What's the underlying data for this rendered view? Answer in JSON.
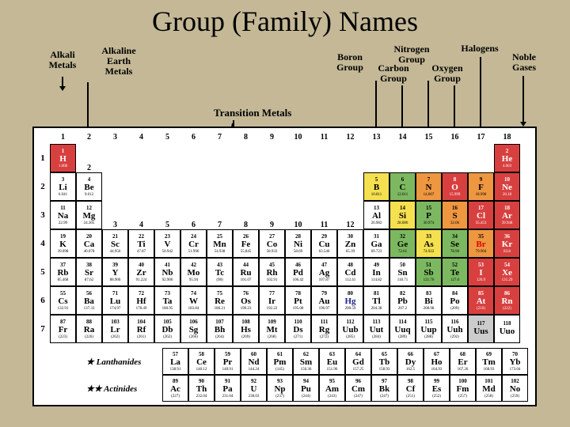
{
  "title": "Group (Family) Names",
  "groupLabels": {
    "alkali": "Alkali\nMetals",
    "alkalineEarth": "Alkaline\nEarth\nMetals",
    "transition": "Transition Metals",
    "boron": "Boron\nGroup",
    "carbon": "Carbon\nGroup",
    "nitrogen": "Nitrogen\nGroup",
    "oxygen": "Oxygen\nGroup",
    "halogens": "Halogens",
    "noble": "Noble\nGases"
  },
  "fblockLabels": {
    "lanthanides": "★ Lanthanides",
    "actinides": "★★ Actinides"
  },
  "colors": {
    "background": "#c4b896",
    "alkali": "#d84040",
    "alkalineEarth": "#ee9640",
    "transition": "#f5e050",
    "postTransition": "#7cb860",
    "metalloid": "#5a8ac8",
    "nonmetal": "#e89abf",
    "halogen": "#d4b890",
    "noble": "#ffffff"
  },
  "groups": [
    "1",
    "2",
    "3",
    "4",
    "5",
    "6",
    "7",
    "8",
    "9",
    "10",
    "11",
    "12",
    "13",
    "14",
    "15",
    "16",
    "17",
    "18"
  ],
  "periods": [
    "1",
    "2",
    "3",
    "4",
    "5",
    "6",
    "7"
  ],
  "elements": {
    "1": {
      "n": 1,
      "s": "H",
      "m": "1.008",
      "c": "c-red",
      "col": 1,
      "row": 1
    },
    "2": {
      "n": 2,
      "s": "He",
      "m": "4.003",
      "c": "c-red",
      "col": 18,
      "row": 1
    },
    "3": {
      "n": 3,
      "s": "Li",
      "m": "6.941",
      "c": "c-white",
      "col": 1,
      "row": 2
    },
    "4": {
      "n": 4,
      "s": "Be",
      "m": "9.012",
      "c": "c-white",
      "col": 2,
      "row": 2
    },
    "5": {
      "n": 5,
      "s": "B",
      "m": "10.811",
      "c": "c-yellow",
      "col": 13,
      "row": 2
    },
    "6": {
      "n": 6,
      "s": "C",
      "m": "12.011",
      "c": "c-green",
      "col": 14,
      "row": 2
    },
    "7": {
      "n": 7,
      "s": "N",
      "m": "14.007",
      "c": "c-orange",
      "col": 15,
      "row": 2
    },
    "8": {
      "n": 8,
      "s": "O",
      "m": "15.999",
      "c": "c-red",
      "col": 16,
      "row": 2
    },
    "9": {
      "n": 9,
      "s": "F",
      "m": "18.998",
      "c": "c-orange",
      "col": 17,
      "row": 2
    },
    "10": {
      "n": 10,
      "s": "Ne",
      "m": "20.18",
      "c": "c-red",
      "col": 18,
      "row": 2
    },
    "11": {
      "n": 11,
      "s": "Na",
      "m": "22.99",
      "c": "c-white",
      "col": 1,
      "row": 3
    },
    "12": {
      "n": 12,
      "s": "Mg",
      "m": "24.305",
      "c": "c-white",
      "col": 2,
      "row": 3
    },
    "13": {
      "n": 13,
      "s": "Al",
      "m": "26.982",
      "c": "c-white",
      "col": 13,
      "row": 3
    },
    "14": {
      "n": 14,
      "s": "Si",
      "m": "28.086",
      "c": "c-yellow",
      "col": 14,
      "row": 3
    },
    "15": {
      "n": 15,
      "s": "P",
      "m": "30.974",
      "c": "c-green",
      "col": 15,
      "row": 3
    },
    "16": {
      "n": 16,
      "s": "S",
      "m": "32.06",
      "c": "c-orange",
      "col": 16,
      "row": 3
    },
    "17": {
      "n": 17,
      "s": "Cl",
      "m": "35.453",
      "c": "c-red",
      "col": 17,
      "row": 3
    },
    "18": {
      "n": 18,
      "s": "Ar",
      "m": "39.948",
      "c": "c-red",
      "col": 18,
      "row": 3
    },
    "19": {
      "n": 19,
      "s": "K",
      "m": "39.098",
      "c": "c-white",
      "col": 1,
      "row": 4
    },
    "20": {
      "n": 20,
      "s": "Ca",
      "m": "40.078",
      "c": "c-white",
      "col": 2,
      "row": 4
    },
    "21": {
      "n": 21,
      "s": "Sc",
      "m": "44.956",
      "c": "c-white",
      "col": 3,
      "row": 4
    },
    "22": {
      "n": 22,
      "s": "Ti",
      "m": "47.87",
      "c": "c-white",
      "col": 4,
      "row": 4
    },
    "23": {
      "n": 23,
      "s": "V",
      "m": "50.942",
      "c": "c-white",
      "col": 5,
      "row": 4
    },
    "24": {
      "n": 24,
      "s": "Cr",
      "m": "51.996",
      "c": "c-white",
      "col": 6,
      "row": 4
    },
    "25": {
      "n": 25,
      "s": "Mn",
      "m": "54.938",
      "c": "c-white",
      "col": 7,
      "row": 4
    },
    "26": {
      "n": 26,
      "s": "Fe",
      "m": "55.845",
      "c": "c-white",
      "col": 8,
      "row": 4
    },
    "27": {
      "n": 27,
      "s": "Co",
      "m": "58.933",
      "c": "c-white",
      "col": 9,
      "row": 4
    },
    "28": {
      "n": 28,
      "s": "Ni",
      "m": "58.69",
      "c": "c-white",
      "col": 10,
      "row": 4
    },
    "29": {
      "n": 29,
      "s": "Cu",
      "m": "63.546",
      "c": "c-white",
      "col": 11,
      "row": 4
    },
    "30": {
      "n": 30,
      "s": "Zn",
      "m": "65.39",
      "c": "c-white",
      "col": 12,
      "row": 4
    },
    "31": {
      "n": 31,
      "s": "Ga",
      "m": "69.723",
      "c": "c-white",
      "col": 13,
      "row": 4
    },
    "32": {
      "n": 32,
      "s": "Ge",
      "m": "72.61",
      "c": "c-green",
      "col": 14,
      "row": 4
    },
    "33": {
      "n": 33,
      "s": "As",
      "m": "74.922",
      "c": "c-yellow",
      "col": 15,
      "row": 4
    },
    "34": {
      "n": 34,
      "s": "Se",
      "m": "78.96",
      "c": "c-green",
      "col": 16,
      "row": 4
    },
    "35": {
      "n": 35,
      "s": "Br",
      "m": "79.904",
      "c": "c-orange sym-red",
      "col": 17,
      "row": 4
    },
    "36": {
      "n": 36,
      "s": "Kr",
      "m": "83.8",
      "c": "c-red",
      "col": 18,
      "row": 4
    },
    "37": {
      "n": 37,
      "s": "Rb",
      "m": "85.468",
      "c": "c-white",
      "col": 1,
      "row": 5
    },
    "38": {
      "n": 38,
      "s": "Sr",
      "m": "87.62",
      "c": "c-white",
      "col": 2,
      "row": 5
    },
    "39": {
      "n": 39,
      "s": "Y",
      "m": "88.906",
      "c": "c-white",
      "col": 3,
      "row": 5
    },
    "40": {
      "n": 40,
      "s": "Zr",
      "m": "91.224",
      "c": "c-white",
      "col": 4,
      "row": 5
    },
    "41": {
      "n": 41,
      "s": "Nb",
      "m": "92.906",
      "c": "c-white",
      "col": 5,
      "row": 5
    },
    "42": {
      "n": 42,
      "s": "Mo",
      "m": "95.94",
      "c": "c-white",
      "col": 6,
      "row": 5
    },
    "43": {
      "n": 43,
      "s": "Tc",
      "m": "(98)",
      "c": "c-white",
      "col": 7,
      "row": 5
    },
    "44": {
      "n": 44,
      "s": "Ru",
      "m": "101.07",
      "c": "c-white",
      "col": 8,
      "row": 5
    },
    "45": {
      "n": 45,
      "s": "Rh",
      "m": "102.91",
      "c": "c-white",
      "col": 9,
      "row": 5
    },
    "46": {
      "n": 46,
      "s": "Pd",
      "m": "106.42",
      "c": "c-white",
      "col": 10,
      "row": 5
    },
    "47": {
      "n": 47,
      "s": "Ag",
      "m": "107.87",
      "c": "c-white",
      "col": 11,
      "row": 5
    },
    "48": {
      "n": 48,
      "s": "Cd",
      "m": "112.41",
      "c": "c-white",
      "col": 12,
      "row": 5
    },
    "49": {
      "n": 49,
      "s": "In",
      "m": "114.82",
      "c": "c-white",
      "col": 13,
      "row": 5
    },
    "50": {
      "n": 50,
      "s": "Sn",
      "m": "118.71",
      "c": "c-white",
      "col": 14,
      "row": 5
    },
    "51": {
      "n": 51,
      "s": "Sb",
      "m": "121.76",
      "c": "c-green",
      "col": 15,
      "row": 5
    },
    "52": {
      "n": 52,
      "s": "Te",
      "m": "127.6",
      "c": "c-green",
      "col": 16,
      "row": 5
    },
    "53": {
      "n": 53,
      "s": "I",
      "m": "126.9",
      "c": "c-red",
      "col": 17,
      "row": 5
    },
    "54": {
      "n": 54,
      "s": "Xe",
      "m": "131.29",
      "c": "c-red",
      "col": 18,
      "row": 5
    },
    "55": {
      "n": 55,
      "s": "Cs",
      "m": "132.91",
      "c": "c-white",
      "col": 1,
      "row": 6
    },
    "56": {
      "n": 56,
      "s": "Ba",
      "m": "137.33",
      "c": "c-white",
      "col": 2,
      "row": 6
    },
    "71": {
      "n": 71,
      "s": "Lu",
      "m": "174.97",
      "c": "c-white",
      "col": 3,
      "row": 6
    },
    "72": {
      "n": 72,
      "s": "Hf",
      "m": "178.49",
      "c": "c-white",
      "col": 4,
      "row": 6
    },
    "73": {
      "n": 73,
      "s": "Ta",
      "m": "180.95",
      "c": "c-white",
      "col": 5,
      "row": 6
    },
    "74": {
      "n": 74,
      "s": "W",
      "m": "183.84",
      "c": "c-white",
      "col": 6,
      "row": 6
    },
    "75": {
      "n": 75,
      "s": "Re",
      "m": "186.21",
      "c": "c-white",
      "col": 7,
      "row": 6
    },
    "76": {
      "n": 76,
      "s": "Os",
      "m": "190.23",
      "c": "c-white",
      "col": 8,
      "row": 6
    },
    "77": {
      "n": 77,
      "s": "Ir",
      "m": "192.22",
      "c": "c-white",
      "col": 9,
      "row": 6
    },
    "78": {
      "n": 78,
      "s": "Pt",
      "m": "195.08",
      "c": "c-white",
      "col": 10,
      "row": 6
    },
    "79": {
      "n": 79,
      "s": "Au",
      "m": "196.97",
      "c": "c-white",
      "col": 11,
      "row": 6
    },
    "80": {
      "n": 80,
      "s": "Hg",
      "m": "200.59",
      "c": "c-white sym-blue",
      "col": 12,
      "row": 6
    },
    "81": {
      "n": 81,
      "s": "Tl",
      "m": "204.38",
      "c": "c-white",
      "col": 13,
      "row": 6
    },
    "82": {
      "n": 82,
      "s": "Pb",
      "m": "207.2",
      "c": "c-white",
      "col": 14,
      "row": 6
    },
    "83": {
      "n": 83,
      "s": "Bi",
      "m": "208.98",
      "c": "c-white",
      "col": 15,
      "row": 6
    },
    "84": {
      "n": 84,
      "s": "Po",
      "m": "(209)",
      "c": "c-white",
      "col": 16,
      "row": 6
    },
    "85": {
      "n": 85,
      "s": "At",
      "m": "(210)",
      "c": "c-red",
      "col": 17,
      "row": 6
    },
    "86": {
      "n": 86,
      "s": "Rn",
      "m": "(222)",
      "c": "c-red",
      "col": 18,
      "row": 6
    },
    "87": {
      "n": 87,
      "s": "Fr",
      "m": "(223)",
      "c": "c-white",
      "col": 1,
      "row": 7
    },
    "88": {
      "n": 88,
      "s": "Ra",
      "m": "(226)",
      "c": "c-white",
      "col": 2,
      "row": 7
    },
    "103": {
      "n": 103,
      "s": "Lr",
      "m": "(262)",
      "c": "c-white",
      "col": 3,
      "row": 7
    },
    "104": {
      "n": 104,
      "s": "Rf",
      "m": "(261)",
      "c": "c-white",
      "col": 4,
      "row": 7
    },
    "105": {
      "n": 105,
      "s": "Db",
      "m": "(262)",
      "c": "c-white",
      "col": 5,
      "row": 7
    },
    "106": {
      "n": 106,
      "s": "Sg",
      "m": "(266)",
      "c": "c-white",
      "col": 6,
      "row": 7
    },
    "107": {
      "n": 107,
      "s": "Bh",
      "m": "(264)",
      "c": "c-white",
      "col": 7,
      "row": 7
    },
    "108": {
      "n": 108,
      "s": "Hs",
      "m": "(269)",
      "c": "c-white",
      "col": 8,
      "row": 7
    },
    "109": {
      "n": 109,
      "s": "Mt",
      "m": "(268)",
      "c": "c-white",
      "col": 9,
      "row": 7
    },
    "110": {
      "n": 110,
      "s": "Ds",
      "m": "(271)",
      "c": "c-white",
      "col": 10,
      "row": 7
    },
    "111": {
      "n": 111,
      "s": "Rg",
      "m": "(272)",
      "c": "c-white",
      "col": 11,
      "row": 7
    },
    "112": {
      "n": 112,
      "s": "Uub",
      "m": "(285)",
      "c": "c-white",
      "col": 12,
      "row": 7
    },
    "113": {
      "n": 113,
      "s": "Uut",
      "m": "(284)",
      "c": "c-white",
      "col": 13,
      "row": 7
    },
    "114": {
      "n": 114,
      "s": "Uuq",
      "m": "(289)",
      "c": "c-white",
      "col": 14,
      "row": 7
    },
    "115": {
      "n": 115,
      "s": "Uup",
      "m": "(288)",
      "c": "c-white",
      "col": 15,
      "row": 7
    },
    "116": {
      "n": 116,
      "s": "Uuh",
      "m": "(292)",
      "c": "c-white",
      "col": 16,
      "row": 7
    },
    "117": {
      "n": 117,
      "s": "Uus",
      "m": "",
      "c": "c-gray",
      "col": 17,
      "row": 7
    },
    "118": {
      "n": 118,
      "s": "Uuo",
      "m": "",
      "c": "c-white",
      "col": 18,
      "row": 7
    }
  },
  "lanthanides": [
    {
      "n": 57,
      "s": "La",
      "m": "138.91"
    },
    {
      "n": 58,
      "s": "Ce",
      "m": "140.12"
    },
    {
      "n": 59,
      "s": "Pr",
      "m": "140.91"
    },
    {
      "n": 60,
      "s": "Nd",
      "m": "144.24"
    },
    {
      "n": 61,
      "s": "Pm",
      "m": "(145)"
    },
    {
      "n": 62,
      "s": "Sm",
      "m": "150.36"
    },
    {
      "n": 63,
      "s": "Eu",
      "m": "151.96"
    },
    {
      "n": 64,
      "s": "Gd",
      "m": "157.25"
    },
    {
      "n": 65,
      "s": "Tb",
      "m": "158.93"
    },
    {
      "n": 66,
      "s": "Dy",
      "m": "162.5"
    },
    {
      "n": 67,
      "s": "Ho",
      "m": "164.93"
    },
    {
      "n": 68,
      "s": "Er",
      "m": "167.26"
    },
    {
      "n": 69,
      "s": "Tm",
      "m": "168.93"
    },
    {
      "n": 70,
      "s": "Yb",
      "m": "173.04"
    }
  ],
  "actinides": [
    {
      "n": 89,
      "s": "Ac",
      "m": "(227)"
    },
    {
      "n": 90,
      "s": "Th",
      "m": "232.04"
    },
    {
      "n": 91,
      "s": "Pa",
      "m": "231.04"
    },
    {
      "n": 92,
      "s": "U",
      "m": "238.03"
    },
    {
      "n": 93,
      "s": "Np",
      "m": "(237)"
    },
    {
      "n": 94,
      "s": "Pu",
      "m": "(244)"
    },
    {
      "n": 95,
      "s": "Am",
      "m": "(243)"
    },
    {
      "n": 96,
      "s": "Cm",
      "m": "(247)"
    },
    {
      "n": 97,
      "s": "Bk",
      "m": "(247)"
    },
    {
      "n": 98,
      "s": "Cf",
      "m": "(251)"
    },
    {
      "n": 99,
      "s": "Es",
      "m": "(252)"
    },
    {
      "n": 100,
      "s": "Fm",
      "m": "(257)"
    },
    {
      "n": 101,
      "s": "Md",
      "m": "(258)"
    },
    {
      "n": 102,
      "s": "No",
      "m": "(259)"
    }
  ]
}
